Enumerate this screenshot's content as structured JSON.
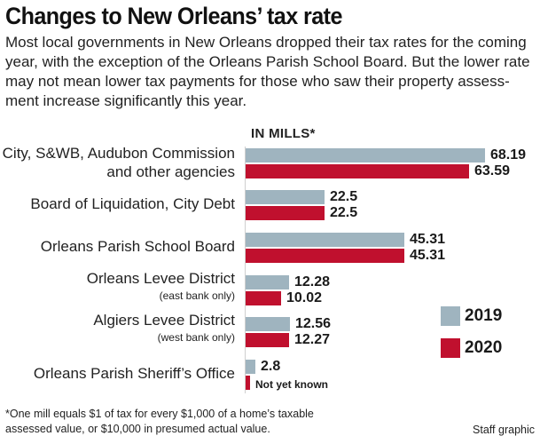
{
  "header": {
    "title": "Changes to New Orleans’ tax rate",
    "intro_lines": [
      "Most local governments in New Orleans dropped their tax rates for the coming",
      "year, with the exception of the Orleans Parish School Board. But the lower rate",
      "may not mean lower tax payments for those who saw their property assess-",
      "ment increase significantly this year."
    ]
  },
  "chart_data": {
    "type": "bar",
    "orientation": "horizontal",
    "units_label": "IN MILLS*",
    "categories": [
      "City, S&WB, Audubon Commission and other agencies",
      "Board of Liquidation, City Debt",
      "Orleans Parish School Board",
      "Orleans Levee District",
      "Algiers Levee District",
      "Orleans Parish Sheriff’s Office"
    ],
    "category_display": [
      {
        "lines": [
          "City, S&WB, Audubon Commission",
          "and other agencies"
        ],
        "note": ""
      },
      {
        "lines": [
          "Board of Liquidation, City Debt"
        ],
        "note": ""
      },
      {
        "lines": [
          "Orleans Parish School Board"
        ],
        "note": ""
      },
      {
        "lines": [
          "Orleans Levee District"
        ],
        "note": "(east bank only)"
      },
      {
        "lines": [
          "Algiers Levee District"
        ],
        "note": "(west bank only)"
      },
      {
        "lines": [
          "Orleans Parish Sheriff’s Office"
        ],
        "note": ""
      }
    ],
    "series": [
      {
        "name": "2019",
        "color": "#9fb4bf",
        "values": [
          68.19,
          22.5,
          45.31,
          12.28,
          12.56,
          2.8
        ],
        "labels": [
          "68.19",
          "22.5",
          "45.31",
          "12.28",
          "12.56",
          "2.8"
        ]
      },
      {
        "name": "2020",
        "color": "#c0102e",
        "values": [
          63.59,
          22.5,
          45.31,
          10.02,
          12.27,
          null
        ],
        "labels": [
          "63.59",
          "22.5",
          "45.31",
          "10.02",
          "12.27",
          "Not yet known"
        ]
      }
    ],
    "xlim": [
      0,
      68.19
    ],
    "grid": false,
    "legend_position": "right"
  },
  "footer": {
    "footnote_lines": [
      "*One mill equals $1 of tax for every $1,000 of a home’s taxable",
      "assessed value, or $10,000 in presumed actual value."
    ],
    "credit": "Staff graphic"
  }
}
